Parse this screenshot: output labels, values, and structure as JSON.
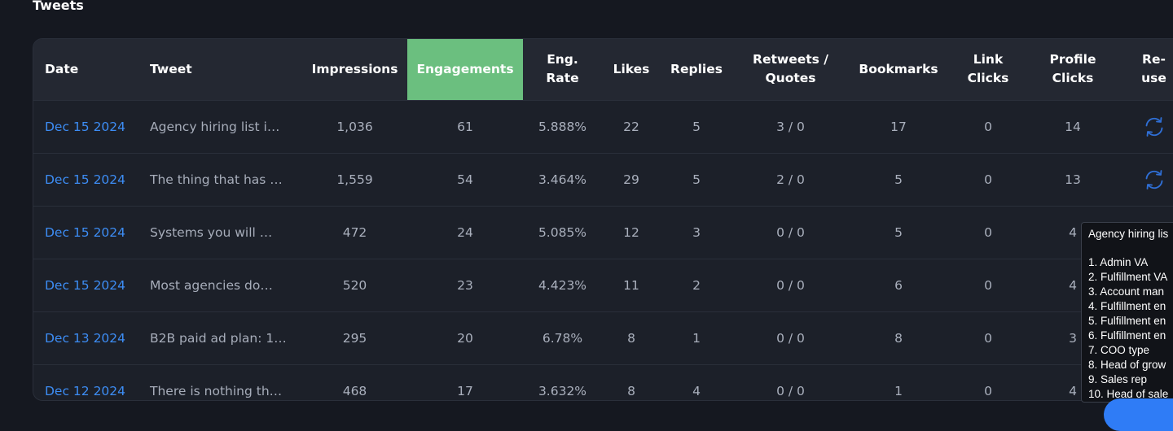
{
  "section": {
    "title": "Tweets"
  },
  "table": {
    "headers": {
      "date": "Date",
      "tweet": "Tweet",
      "impressions": "Impressions",
      "engagements": "Engagements",
      "eng_rate_1": "Eng.",
      "eng_rate_2": "Rate",
      "likes": "Likes",
      "replies": "Replies",
      "retweets_1": "Retweets /",
      "retweets_2": "Quotes",
      "bookmarks": "Bookmarks",
      "link_clicks_1": "Link",
      "link_clicks_2": "Clicks",
      "profile_clicks_1": "Profile",
      "profile_clicks_2": "Clicks",
      "reuse_1": "Re-",
      "reuse_2": "use"
    },
    "rows": [
      {
        "date": "Dec 15 2024",
        "tweet": "Agency hiring list i…",
        "impressions": "1,036",
        "engagements": "61",
        "eng_rate": "5.888%",
        "likes": "22",
        "replies": "5",
        "retweets": "3 / 0",
        "bookmarks": "17",
        "link_clicks": "0",
        "profile_clicks": "14"
      },
      {
        "date": "Dec 15 2024",
        "tweet": "The thing that has …",
        "impressions": "1,559",
        "engagements": "54",
        "eng_rate": "3.464%",
        "likes": "29",
        "replies": "5",
        "retweets": "2 / 0",
        "bookmarks": "5",
        "link_clicks": "0",
        "profile_clicks": "13"
      },
      {
        "date": "Dec 15 2024",
        "tweet": "Systems you will …",
        "impressions": "472",
        "engagements": "24",
        "eng_rate": "5.085%",
        "likes": "12",
        "replies": "3",
        "retweets": "0 / 0",
        "bookmarks": "5",
        "link_clicks": "0",
        "profile_clicks": "4"
      },
      {
        "date": "Dec 15 2024",
        "tweet": "Most agencies do…",
        "impressions": "520",
        "engagements": "23",
        "eng_rate": "4.423%",
        "likes": "11",
        "replies": "2",
        "retweets": "0 / 0",
        "bookmarks": "6",
        "link_clicks": "0",
        "profile_clicks": "4"
      },
      {
        "date": "Dec 13 2024",
        "tweet": "B2B paid ad plan: 1…",
        "impressions": "295",
        "engagements": "20",
        "eng_rate": "6.78%",
        "likes": "8",
        "replies": "1",
        "retweets": "0 / 0",
        "bookmarks": "8",
        "link_clicks": "0",
        "profile_clicks": "3"
      },
      {
        "date": "Dec 12 2024",
        "tweet": "There is nothing th…",
        "impressions": "468",
        "engagements": "17",
        "eng_rate": "3.632%",
        "likes": "8",
        "replies": "4",
        "retweets": "0 / 0",
        "bookmarks": "1",
        "link_clicks": "0",
        "profile_clicks": "4"
      }
    ]
  },
  "tooltip": {
    "title": "Agency hiring lis",
    "lines": [
      "1. Admin VA",
      "2. Fulfillment VA",
      "3. Account man",
      "4. Fulfillment en",
      "5. Fulfillment en",
      "6. Fulfillment en",
      "7. COO type",
      "8. Head of grow",
      "9. Sales rep",
      "10. Head of sale"
    ]
  },
  "colors": {
    "accent_link": "#3d8df5",
    "highlight_header": "#6bbf7f",
    "background": "#151820",
    "card": "#1c2029"
  },
  "icons": {
    "reuse": "refresh-icon"
  }
}
